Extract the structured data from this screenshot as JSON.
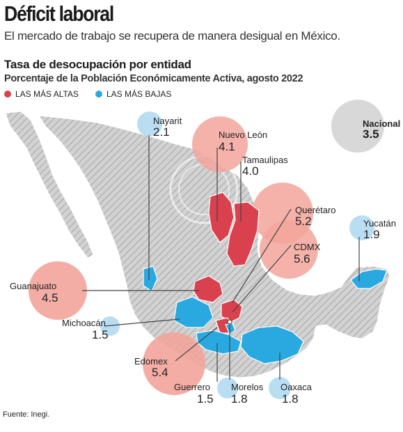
{
  "header": {
    "title": "Déficit laboral",
    "subtitle": "El mercado de trabajo se recupera de manera desigual en México.",
    "section_title": "Tasa de desocupación por entidad",
    "section_subtitle": "Porcentaje de la Población Económicamente Activa, agosto 2022"
  },
  "legend": {
    "high": {
      "label": "LAS MÁS ALTAS",
      "color": "#d9414e"
    },
    "low": {
      "label": "LAS MÁS BAJAS",
      "color": "#2aa9e0"
    }
  },
  "colors": {
    "high_bubble": "#f2a49b",
    "low_bubble": "#b9def2",
    "national_bubble": "#d8d8d8",
    "map_gray": "#c9c9c9",
    "map_high": "#d9414e",
    "map_low": "#2aa9e0"
  },
  "national": {
    "label": "Nacional",
    "value": "3.5"
  },
  "states": {
    "nayarit": {
      "name": "Nayarit",
      "value": "2.1",
      "group": "low"
    },
    "nuevo_leon": {
      "name": "Nuevo León",
      "value": "4.1",
      "group": "high"
    },
    "tamaulipas": {
      "name": "Tamaulipas",
      "value": "4.0",
      "group": "high"
    },
    "queretaro": {
      "name": "Querétaro",
      "value": "5.2",
      "group": "high"
    },
    "cdmx": {
      "name": "CDMX",
      "value": "5.6",
      "group": "high"
    },
    "yucatan": {
      "name": "Yucatán",
      "value": "1.9",
      "group": "low"
    },
    "guanajuato": {
      "name": "Guanajuato",
      "value": "4.5",
      "group": "high"
    },
    "michoacan": {
      "name": "Michoacán",
      "value": "1.5",
      "group": "low"
    },
    "edomex": {
      "name": "Edomex",
      "value": "5.4",
      "group": "high"
    },
    "guerrero": {
      "name": "Guerrero",
      "value": "1.5",
      "group": "low"
    },
    "morelos": {
      "name": "Morelos",
      "value": "1.8",
      "group": "low"
    },
    "oaxaca": {
      "name": "Oaxaca",
      "value": "1.8",
      "group": "low"
    }
  },
  "source": "Fuente: Inegi."
}
